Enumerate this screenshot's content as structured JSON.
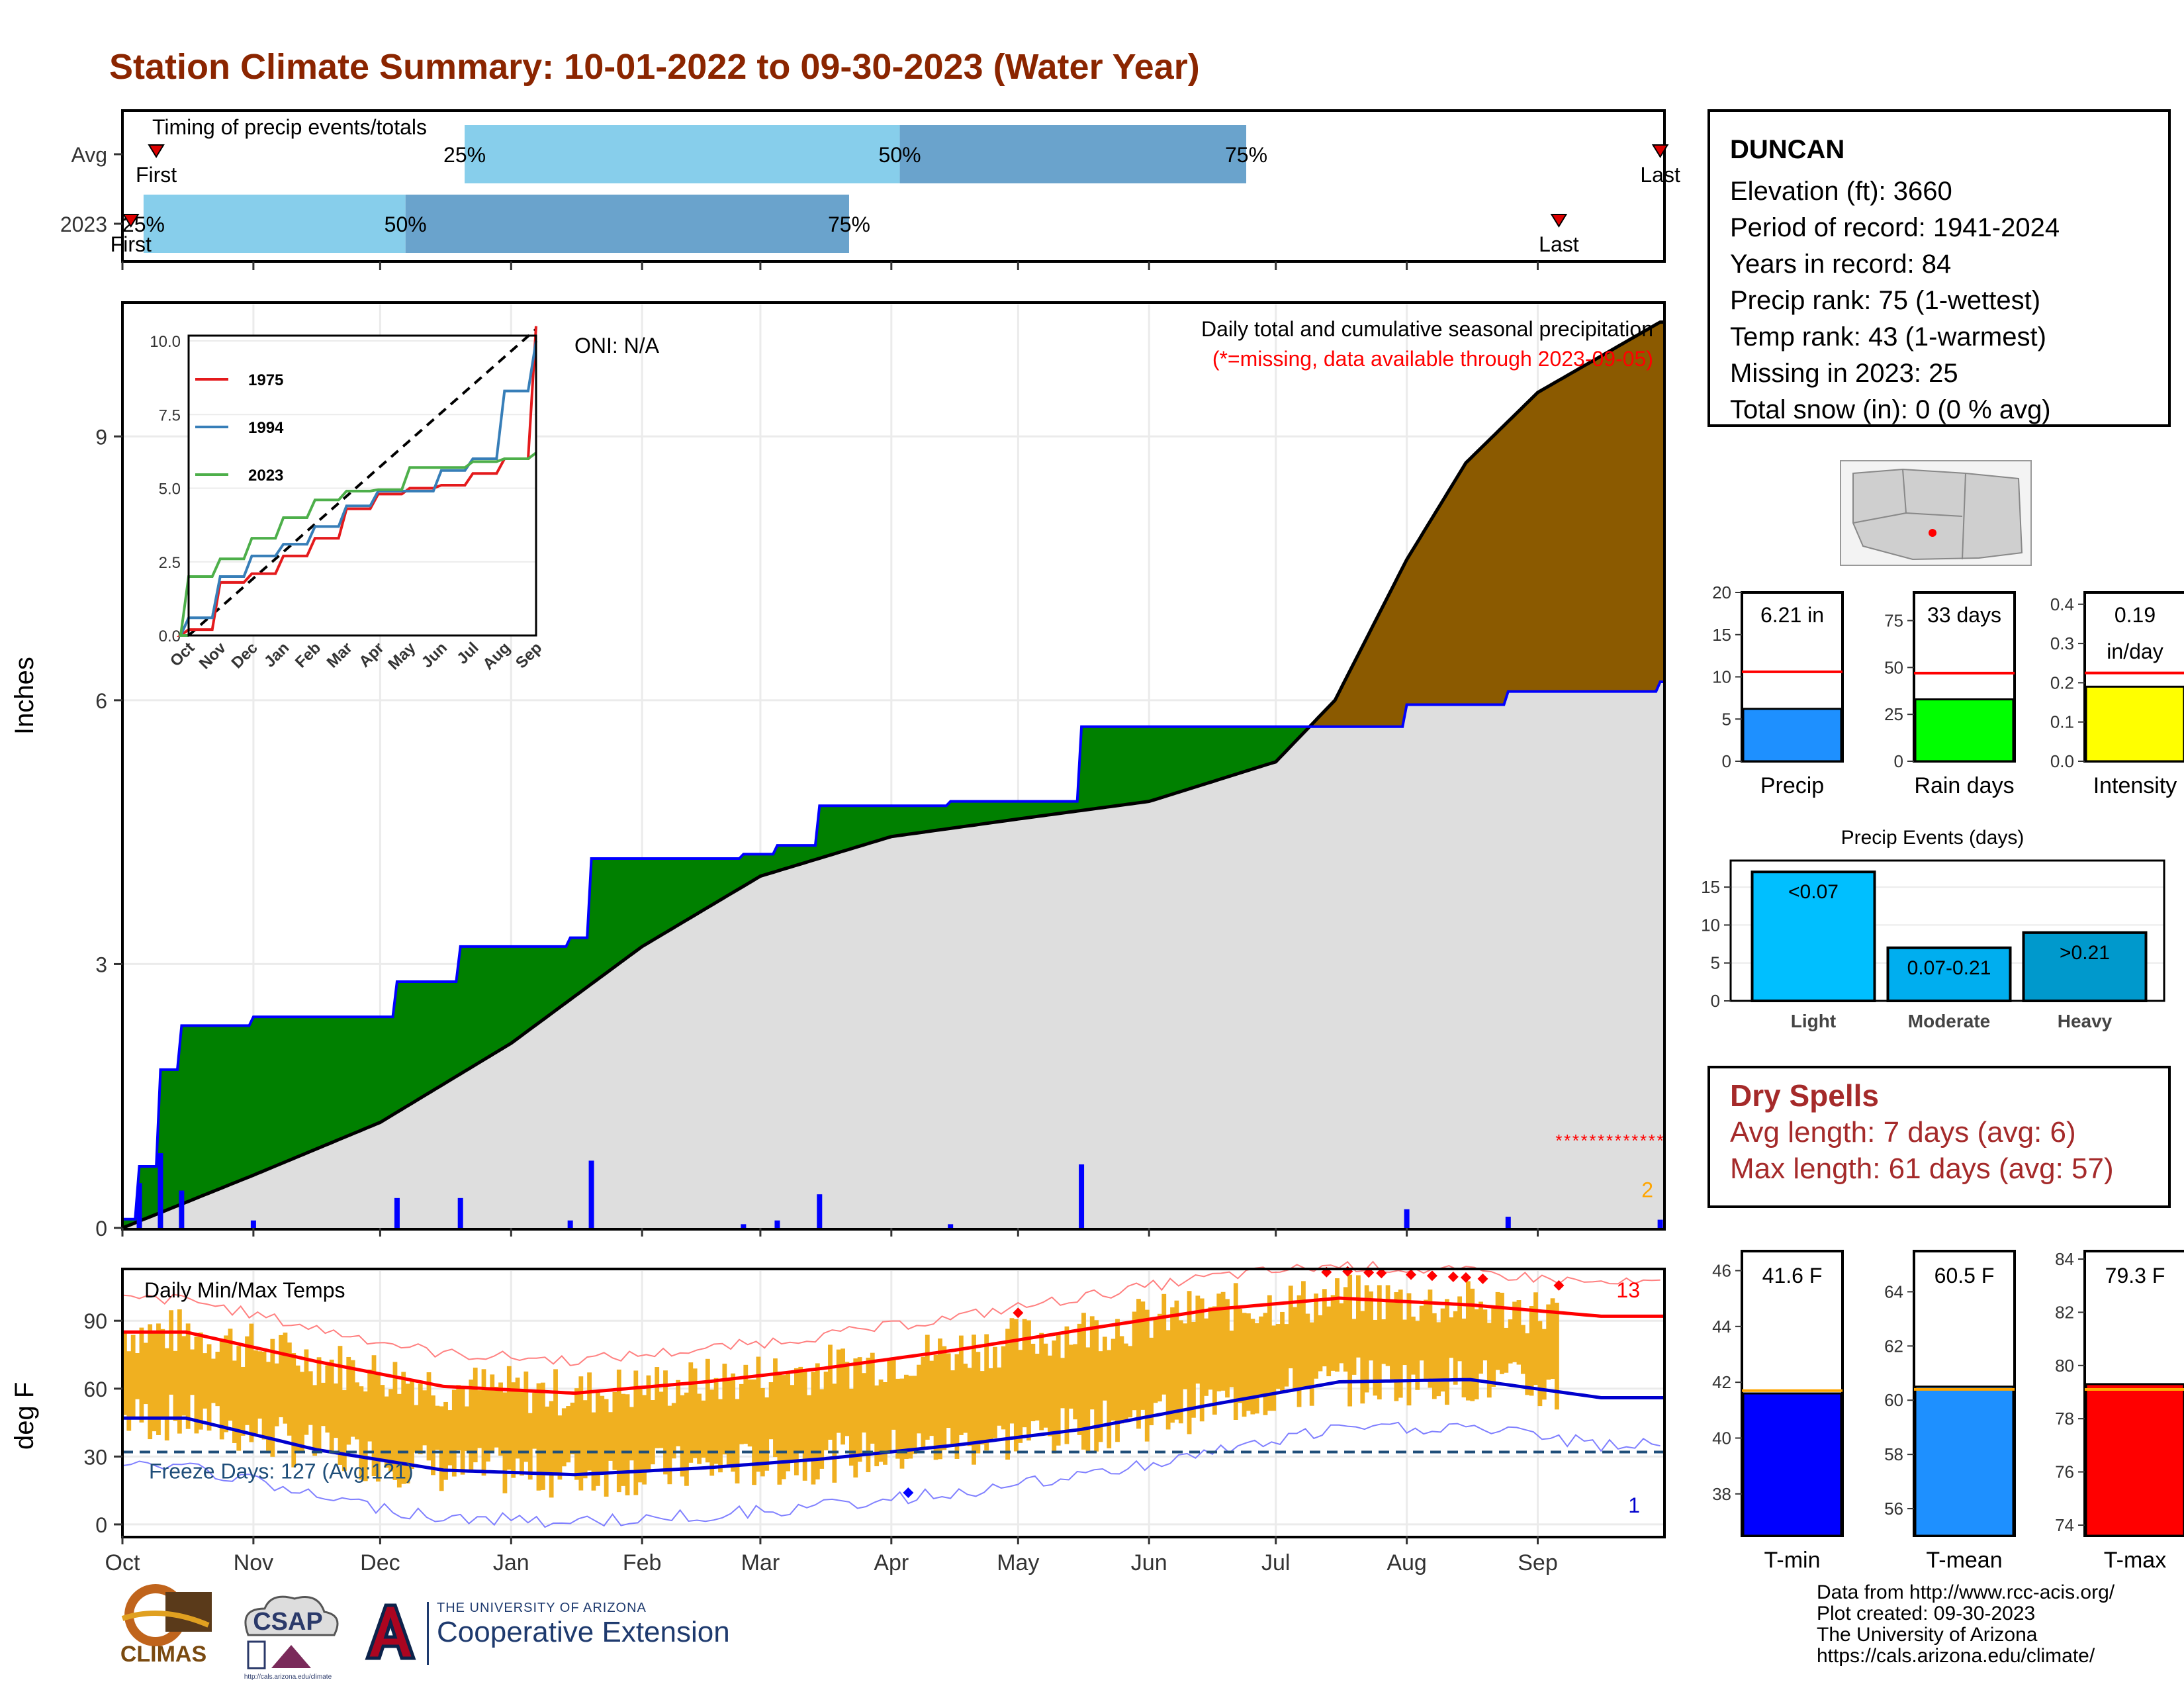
{
  "title": "Station Climate Summary: 10-01-2022 to 09-30-2023 (Water Year)",
  "station": {
    "name": "DUNCAN",
    "lines": [
      "Elevation (ft): 3660",
      "Period of record: 1941-2024",
      "Years in record: 84",
      "Precip rank: 75 (1-wettest)",
      "Temp rank: 43 (1-warmest)",
      "Missing in 2023: 25",
      "Total snow (in): 0 (0 % avg)"
    ]
  },
  "timing": {
    "title": "Timing of precip events/totals",
    "rows": [
      {
        "label": "Avg",
        "first_label": "First",
        "last_label": "Last",
        "p25": "25%",
        "p50": "50%",
        "p75": "75%",
        "first_day": 8,
        "p25_day": 81,
        "p50_day": 184,
        "p75_day": 266,
        "last_day": 364
      },
      {
        "label": "2023",
        "first_label": "First",
        "last_label": "Last",
        "p25": "25%",
        "p50": "50%",
        "p75": "75%",
        "first_day": 2,
        "p25_day": 5,
        "p50_day": 67,
        "p75_day": 172,
        "last_day": 340
      }
    ]
  },
  "precip_panel": {
    "caption1": "Daily total and cumulative seasonal precipitation",
    "caption2": "(*=missing, data available through 2023-09-05)",
    "oni": "ONI: N/A",
    "ylabel": "Inches",
    "yticks": [
      "0",
      "3",
      "6",
      "9"
    ],
    "missing_count": "2",
    "colors": {
      "green": "#008000",
      "brown": "#8b5a00",
      "gray": "#dedede",
      "blue_line": "#0000ff",
      "bars": "#0000ff"
    }
  },
  "inset": {
    "yticks": [
      "0.0",
      "2.5",
      "5.0",
      "7.5",
      "10.0"
    ],
    "xticks": [
      "Oct",
      "Nov",
      "Dec",
      "Jan",
      "Feb",
      "Mar",
      "Apr",
      "May",
      "Jun",
      "Jul",
      "Aug",
      "Sep"
    ],
    "legend": [
      {
        "name": "1975",
        "color": "#e41a1c"
      },
      {
        "name": "1994",
        "color": "#377eb8"
      },
      {
        "name": "2023",
        "color": "#4daf4a"
      }
    ]
  },
  "temp_panel": {
    "title": "Daily Min/Max Temps",
    "ylabel": "deg F",
    "yticks": [
      "0",
      "30",
      "60",
      "90"
    ],
    "freeze_label": "Freeze Days: 127 (Avg:121)",
    "record_high_count": "13",
    "record_low_count": "1",
    "colors": {
      "bars": "#f0b020",
      "avg_max": "#ff0000",
      "avg_min": "#0000cd",
      "freeze": "#1f4e79"
    }
  },
  "months": [
    "Oct",
    "Nov",
    "Dec",
    "Jan",
    "Feb",
    "Mar",
    "Apr",
    "May",
    "Jun",
    "Jul",
    "Aug",
    "Sep"
  ],
  "mini_precip": [
    {
      "top": "6.21 in",
      "top2": "",
      "label": "Precip",
      "value": 6.21,
      "avg": 10.6,
      "ymax": 20,
      "yticks": [
        "0",
        "5",
        "10",
        "15",
        "20"
      ],
      "color": "#1e90ff"
    },
    {
      "top": "33 days",
      "top2": "",
      "label": "Rain days",
      "value": 33,
      "avg": 47,
      "ymax": 90,
      "yticks": [
        "0",
        "25",
        "50",
        "75"
      ],
      "color": "#00ff00"
    },
    {
      "top": "0.19",
      "top2": "in/day",
      "label": "Intensity",
      "value": 0.19,
      "avg": 0.225,
      "ymax": 0.43,
      "yticks": [
        "0.0",
        "0.1",
        "0.2",
        "0.3",
        "0.4"
      ],
      "color": "#ffff00"
    }
  ],
  "events": {
    "title": "Precip Events (days)",
    "yticks": [
      "0",
      "5",
      "10",
      "15"
    ],
    "bars": [
      {
        "label": "Light",
        "inner": "<0.07",
        "value": 17,
        "color": "#00bfff"
      },
      {
        "label": "Moderate",
        "inner": "0.07-0.21",
        "value": 7,
        "color": "#00aeef"
      },
      {
        "label": "Heavy",
        "inner": ">0.21",
        "value": 9,
        "color": "#0099cc"
      }
    ]
  },
  "dry_spells": {
    "title": "Dry Spells",
    "avg": "Avg length: 7 days (avg: 6)",
    "max": "Max length: 61 days (avg: 57)"
  },
  "mini_temp": [
    {
      "top": "41.6 F",
      "label": "T-min",
      "value": 41.6,
      "avg": 41.7,
      "ymin": 36.5,
      "ymax": 46.7,
      "yticks": [
        "38",
        "40",
        "42",
        "44",
        "46"
      ],
      "tickvals": [
        38,
        40,
        42,
        44,
        46
      ],
      "color": "#0000ff"
    },
    {
      "top": "60.5 F",
      "label": "T-mean",
      "value": 60.5,
      "avg": 60.4,
      "ymin": 55,
      "ymax": 65.5,
      "yticks": [
        "56",
        "58",
        "60",
        "62",
        "64"
      ],
      "tickvals": [
        56,
        58,
        60,
        62,
        64
      ],
      "color": "#1e90ff"
    },
    {
      "top": "79.3 F",
      "label": "T-max",
      "value": 79.3,
      "avg": 79.1,
      "ymin": 73.6,
      "ymax": 84.3,
      "yticks": [
        "74",
        "76",
        "78",
        "80",
        "82",
        "84"
      ],
      "tickvals": [
        74,
        76,
        78,
        80,
        82,
        84
      ],
      "color": "#ff0000"
    }
  ],
  "credits": [
    "Data from http://www.rcc-acis.org/",
    "Plot created: 09-30-2023",
    "The University of Arizona",
    "https://cals.arizona.edu/climate/"
  ],
  "logos": {
    "climas": "CLIMAS",
    "csap": "CSAP",
    "csap_url": "http://cals.arizona.edu/climate",
    "ua_small": "THE UNIVERSITY OF ARIZONA",
    "ua_big": "Cooperative Extension"
  },
  "chart_data": [
    {
      "type": "area",
      "title": "Daily total and cumulative seasonal precipitation",
      "ylabel": "Inches",
      "ylim": [
        0,
        10.5
      ],
      "series": [
        {
          "name": "2023 cumulative",
          "x": [
            "2022-10-01",
            "2022-10-05",
            "2022-10-10",
            "2022-10-15",
            "2022-11-01",
            "2022-12-01",
            "2022-12-05",
            "2022-12-20",
            "2023-01-15",
            "2023-01-20",
            "2023-02-25",
            "2023-03-05",
            "2023-03-15",
            "2023-04-15",
            "2023-05-15",
            "2023-05-16",
            "2023-07-10",
            "2023-08-01",
            "2023-08-25",
            "2023-09-30"
          ],
          "values": [
            0.1,
            0.7,
            1.8,
            2.3,
            2.4,
            2.4,
            2.8,
            3.2,
            3.3,
            4.2,
            4.25,
            4.35,
            4.8,
            4.85,
            4.85,
            5.7,
            5.7,
            5.95,
            6.1,
            6.21
          ]
        },
        {
          "name": "Average cumulative",
          "x": [
            "2022-10-01",
            "2022-11-01",
            "2022-12-01",
            "2023-01-01",
            "2023-02-01",
            "2023-03-01",
            "2023-04-01",
            "2023-05-01",
            "2023-06-01",
            "2023-07-01",
            "2023-07-15",
            "2023-08-01",
            "2023-08-15",
            "2023-09-01",
            "2023-09-30"
          ],
          "values": [
            0,
            0.6,
            1.2,
            2.1,
            3.2,
            4.0,
            4.45,
            4.65,
            4.85,
            5.3,
            6.0,
            7.6,
            8.7,
            9.5,
            10.3
          ]
        }
      ]
    },
    {
      "type": "line",
      "title": "",
      "xlabel": "",
      "ylabel": "",
      "categories": [
        "Oct",
        "Nov",
        "Dec",
        "Jan",
        "Feb",
        "Mar",
        "Apr",
        "May",
        "Jun",
        "Jul",
        "Aug",
        "Sep"
      ],
      "ylim": [
        0,
        10
      ],
      "series": [
        {
          "name": "1975",
          "values": [
            0.2,
            1.8,
            2.1,
            2.7,
            3.3,
            4.3,
            4.8,
            5.0,
            5.1,
            5.5,
            6.0,
            10.5
          ]
        },
        {
          "name": "1994",
          "values": [
            0.6,
            2.0,
            2.7,
            3.1,
            3.7,
            4.4,
            4.9,
            4.9,
            5.6,
            6.0,
            8.3,
            10.0
          ]
        },
        {
          "name": "2023",
          "values": [
            2.0,
            2.6,
            3.3,
            4.0,
            4.6,
            4.9,
            4.95,
            5.7,
            5.7,
            5.9,
            6.0,
            6.2
          ]
        }
      ]
    },
    {
      "type": "line",
      "title": "Daily Min/Max Temps",
      "ylabel": "deg F",
      "categories": [
        "Oct",
        "Nov",
        "Dec",
        "Jan",
        "Feb",
        "Mar",
        "Apr",
        "May",
        "Jun",
        "Jul",
        "Aug",
        "Sep"
      ],
      "ylim": [
        -5,
        112
      ],
      "series": [
        {
          "name": "Avg max",
          "values": [
            85,
            72,
            61,
            58,
            63,
            69,
            77,
            86,
            95,
            100,
            97,
            92
          ]
        },
        {
          "name": "Avg min",
          "values": [
            47,
            33,
            24,
            22,
            25,
            29,
            35,
            42,
            53,
            63,
            64,
            56
          ]
        }
      ]
    }
  ]
}
